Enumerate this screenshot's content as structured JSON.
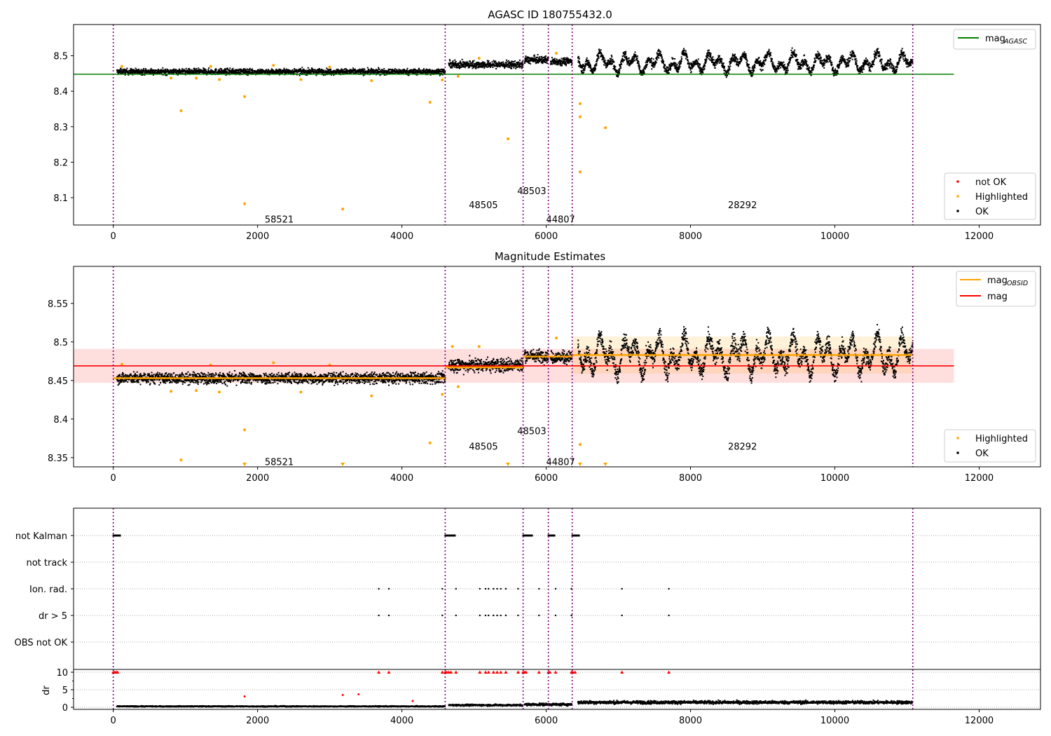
{
  "chart_data": [
    {
      "type": "scatter",
      "title": "AGASC ID 180755432.0",
      "xlim": [
        -550,
        12850
      ],
      "ylim": [
        8.023,
        8.588
      ],
      "xticks": [
        0,
        2000,
        4000,
        6000,
        8000,
        10000,
        12000
      ],
      "yticks": [
        8.1,
        8.2,
        8.3,
        8.4,
        8.5
      ],
      "vlines": [
        0,
        4600,
        5680,
        6030,
        6360,
        11080
      ],
      "reference_lines": [
        {
          "name": "mag_AGASC",
          "value": 8.448,
          "x": [
            -550,
            11650
          ],
          "color": "#008000"
        }
      ],
      "obsid_labels": [
        {
          "text": "58521",
          "x": 2300,
          "y": 8.04
        },
        {
          "text": "48505",
          "x": 5130,
          "y": 8.08
        },
        {
          "text": "48503",
          "x": 5800,
          "y": 8.12
        },
        {
          "text": "44807",
          "x": 6200,
          "y": 8.04
        },
        {
          "text": "28292",
          "x": 8720,
          "y": 8.08
        }
      ],
      "ok_segments": [
        {
          "x": [
            50,
            4600
          ],
          "mean": 8.455,
          "noise": 0.008,
          "osc": 0
        },
        {
          "x": [
            4650,
            5680
          ],
          "mean": 8.475,
          "noise": 0.01,
          "osc": 0
        },
        {
          "x": [
            5700,
            6030
          ],
          "mean": 8.488,
          "noise": 0.01,
          "osc": 0
        },
        {
          "x": [
            6060,
            6360
          ],
          "mean": 8.484,
          "noise": 0.01,
          "osc": 0
        },
        {
          "x": [
            6440,
            11080
          ],
          "mean": 8.48,
          "noise": 0.012,
          "osc": 0.03
        }
      ],
      "highlighted": [
        {
          "x": 940,
          "y": 8.345
        },
        {
          "x": 1820,
          "y": 8.385
        },
        {
          "x": 1820,
          "y": 8.083
        },
        {
          "x": 3180,
          "y": 8.068
        },
        {
          "x": 4390,
          "y": 8.369
        },
        {
          "x": 5470,
          "y": 8.266
        },
        {
          "x": 6470,
          "y": 8.365
        },
        {
          "x": 6470,
          "y": 8.328
        },
        {
          "x": 6470,
          "y": 8.173
        },
        {
          "x": 6820,
          "y": 8.297
        },
        {
          "x": 800,
          "y": 8.437
        },
        {
          "x": 1150,
          "y": 8.437
        },
        {
          "x": 1470,
          "y": 8.433
        },
        {
          "x": 2220,
          "y": 8.473
        },
        {
          "x": 2600,
          "y": 8.433
        },
        {
          "x": 3000,
          "y": 8.468
        },
        {
          "x": 3580,
          "y": 8.43
        },
        {
          "x": 4560,
          "y": 8.432
        },
        {
          "x": 4780,
          "y": 8.442
        },
        {
          "x": 5070,
          "y": 8.493
        },
        {
          "x": 6140,
          "y": 8.507
        },
        {
          "x": 120,
          "y": 8.47
        },
        {
          "x": 1350,
          "y": 8.47
        }
      ],
      "legend_top": {
        "position": "upper right",
        "entries": [
          {
            "label": "mag",
            "sub": "AGASC",
            "color": "#008000"
          }
        ]
      },
      "legend_bottom": {
        "position": "lower right",
        "entries": [
          {
            "label": "not OK",
            "color": "#ff0000"
          },
          {
            "label": "Highlighted",
            "color": "#ffa500"
          },
          {
            "label": "OK",
            "color": "#000000"
          }
        ]
      }
    },
    {
      "type": "scatter",
      "title": "Magnitude Estimates",
      "xlim": [
        -550,
        12850
      ],
      "ylim": [
        8.338,
        8.598
      ],
      "xticks": [
        0,
        2000,
        4000,
        6000,
        8000,
        10000,
        12000
      ],
      "yticks": [
        8.35,
        8.4,
        8.45,
        8.5,
        8.55
      ],
      "vlines": [
        0,
        4600,
        5680,
        6030,
        6360,
        11080
      ],
      "mag_line": {
        "name": "mag",
        "value": 8.469,
        "band": [
          8.447,
          8.491
        ],
        "x": [
          -550,
          11650
        ],
        "color": "#ff0000"
      },
      "obsid_mags": [
        {
          "x": [
            0,
            4600
          ],
          "value": 8.453,
          "band": [
            8.451,
            8.455
          ]
        },
        {
          "x": [
            4600,
            5680
          ],
          "value": 8.467,
          "band": [
            8.464,
            8.47
          ]
        },
        {
          "x": [
            5680,
            6030
          ],
          "value": 8.481,
          "band": [
            8.476,
            8.486
          ]
        },
        {
          "x": [
            6030,
            6360
          ],
          "value": 8.481,
          "band": [
            8.477,
            8.485
          ]
        },
        {
          "x": [
            6360,
            11080
          ],
          "value": 8.483,
          "band": [
            8.459,
            8.507
          ]
        }
      ],
      "obsid_labels": [
        {
          "text": "58521",
          "x": 2300,
          "y": 8.345
        },
        {
          "text": "48505",
          "x": 5130,
          "y": 8.365
        },
        {
          "text": "48503",
          "x": 5800,
          "y": 8.385
        },
        {
          "text": "44807",
          "x": 6200,
          "y": 8.345
        },
        {
          "text": "28292",
          "x": 8720,
          "y": 8.365
        }
      ],
      "ok_segments": [
        {
          "x": [
            50,
            4600
          ],
          "mean": 8.453,
          "noise": 0.007,
          "osc": 0
        },
        {
          "x": [
            4650,
            5680
          ],
          "mean": 8.47,
          "noise": 0.009,
          "osc": 0
        },
        {
          "x": [
            5700,
            6030
          ],
          "mean": 8.482,
          "noise": 0.008,
          "osc": 0
        },
        {
          "x": [
            6060,
            6360
          ],
          "mean": 8.48,
          "noise": 0.008,
          "osc": 0
        },
        {
          "x": [
            6440,
            11080
          ],
          "mean": 8.483,
          "noise": 0.011,
          "osc": 0.028
        }
      ],
      "highlighted": [
        {
          "x": 940,
          "y": 8.347
        },
        {
          "x": 1820,
          "y": 8.386
        },
        {
          "x": 4390,
          "y": 8.369
        },
        {
          "x": 6470,
          "y": 8.367
        },
        {
          "x": 800,
          "y": 8.436
        },
        {
          "x": 1150,
          "y": 8.437
        },
        {
          "x": 1470,
          "y": 8.435
        },
        {
          "x": 2220,
          "y": 8.473
        },
        {
          "x": 2600,
          "y": 8.435
        },
        {
          "x": 3000,
          "y": 8.47
        },
        {
          "x": 3580,
          "y": 8.43
        },
        {
          "x": 4560,
          "y": 8.432
        },
        {
          "x": 4780,
          "y": 8.442
        },
        {
          "x": 5070,
          "y": 8.494
        },
        {
          "x": 6140,
          "y": 8.505
        },
        {
          "x": 120,
          "y": 8.471
        },
        {
          "x": 1350,
          "y": 8.47
        },
        {
          "x": 4700,
          "y": 8.494
        }
      ],
      "below_range_markers": [
        1820,
        3180,
        5470,
        6470,
        6820
      ],
      "legend_top": {
        "position": "upper right",
        "entries": [
          {
            "label": "mag",
            "sub": "OBSID",
            "color": "#ffa500"
          },
          {
            "label": "mag",
            "sub": "",
            "color": "#ff0000"
          }
        ]
      },
      "legend_bottom": {
        "position": "lower right",
        "entries": [
          {
            "label": "Highlighted",
            "color": "#ffa500"
          },
          {
            "label": "OK",
            "color": "#000000"
          }
        ]
      }
    },
    {
      "type": "scatter",
      "title": "",
      "xlim": [
        -550,
        12850
      ],
      "xticks": [
        0,
        2000,
        4000,
        6000,
        8000,
        10000,
        12000
      ],
      "vlines": [
        0,
        4600,
        5680,
        6030,
        6360,
        11080
      ],
      "flags": [
        {
          "label": "not Kalman",
          "x": [
            0,
            30,
            60,
            4600,
            4630,
            4660,
            4700,
            5680,
            5710,
            5740,
            5770,
            6030,
            6060,
            6080,
            6360,
            6390,
            6420
          ]
        },
        {
          "label": "not track",
          "x": []
        },
        {
          "label": "Ion. rad.",
          "x": [
            3680,
            3820,
            4560,
            4750,
            5080,
            5160,
            5200,
            5270,
            5320,
            5370,
            5440,
            5610,
            5900,
            6130,
            6350,
            7050,
            7700
          ]
        },
        {
          "label": "dr > 5",
          "x": [
            3680,
            3820,
            4560,
            4750,
            5080,
            5160,
            5200,
            5270,
            5320,
            5370,
            5440,
            5610,
            5900,
            6130,
            6350,
            7050,
            7700
          ]
        },
        {
          "label": "OBS not OK",
          "x": []
        }
      ],
      "dr": {
        "ylabel": "dr",
        "ylim": [
          -0.6,
          10.8
        ],
        "yticks": [
          0,
          5,
          10
        ],
        "clipped_value": 10,
        "clipped_x": [
          0,
          20,
          40,
          60,
          3680,
          3820,
          4560,
          4600,
          4620,
          4650,
          4680,
          4750,
          5080,
          5160,
          5200,
          5270,
          5320,
          5370,
          5440,
          5610,
          5680,
          5700,
          5720,
          5900,
          6030,
          6050,
          6130,
          6350,
          6370,
          6400,
          7050,
          7700
        ],
        "outliers": [
          {
            "x": 1820,
            "y": 3.1
          },
          {
            "x": 3180,
            "y": 3.5
          },
          {
            "x": 3400,
            "y": 3.7
          },
          {
            "x": 4150,
            "y": 1.8
          }
        ],
        "ok_segments": [
          {
            "x": [
              50,
              4600
            ],
            "mean": 0.25,
            "noise": 0.15
          },
          {
            "x": [
              4650,
              5680
            ],
            "mean": 0.6,
            "noise": 0.25
          },
          {
            "x": [
              5700,
              6360
            ],
            "mean": 0.8,
            "noise": 0.35
          },
          {
            "x": [
              6440,
              11080
            ],
            "mean": 1.4,
            "noise": 0.45
          }
        ]
      }
    }
  ]
}
